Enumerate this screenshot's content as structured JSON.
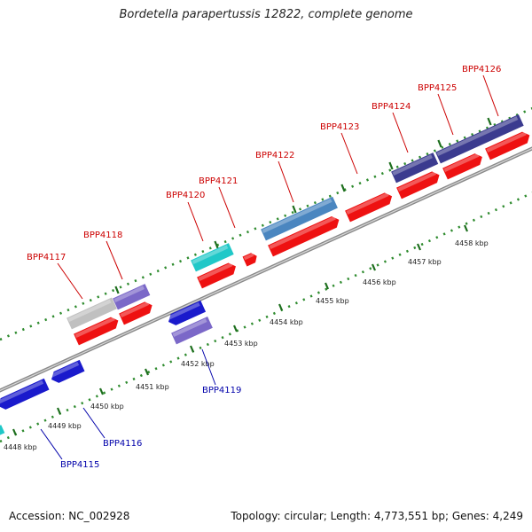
{
  "title": "Bordetella parapertussis 12822, complete genome",
  "footer": {
    "accession": "Accession: NC_002928",
    "summary": "Topology: circular; Length: 4,773,551 bp; Genes: 4,249"
  },
  "colors": {
    "backbone": "#8a8a8a",
    "ruler_dots": "#2e8b2e",
    "label_top": "#cc0000",
    "label_bottom": "#0000aa",
    "cds_red": "#ee1111",
    "cds_blue": "#1a1acc",
    "cds_purple": "#7b68c8",
    "cds_cyan": "#20c8c8",
    "cds_steel": "#4a86c0",
    "cds_darkpurple": "#3b3b8f",
    "cds_gray": "#c0c0c0"
  },
  "ruler": {
    "ticks": [
      {
        "label": "4448 kbp"
      },
      {
        "label": "4449 kbp"
      },
      {
        "label": "4450 kbp"
      },
      {
        "label": "4451 kbp"
      },
      {
        "label": "4452 kbp"
      },
      {
        "label": "4453 kbp"
      },
      {
        "label": "4454 kbp"
      },
      {
        "label": "4455 kbp"
      },
      {
        "label": "4456 kbp"
      },
      {
        "label": "4457 kbp"
      },
      {
        "label": "4458 kbp"
      }
    ]
  },
  "genes_top": [
    {
      "label": "BPP4117"
    },
    {
      "label": "BPP4118"
    },
    {
      "label": "BPP4120"
    },
    {
      "label": "BPP4121"
    },
    {
      "label": "BPP4122"
    },
    {
      "label": "BPP4123"
    },
    {
      "label": "BPP4124"
    },
    {
      "label": "BPP4125"
    },
    {
      "label": "BPP4126"
    }
  ],
  "genes_bottom": [
    {
      "label": "BPP4115"
    },
    {
      "label": "BPP4116"
    },
    {
      "label": "BPP4119"
    }
  ]
}
